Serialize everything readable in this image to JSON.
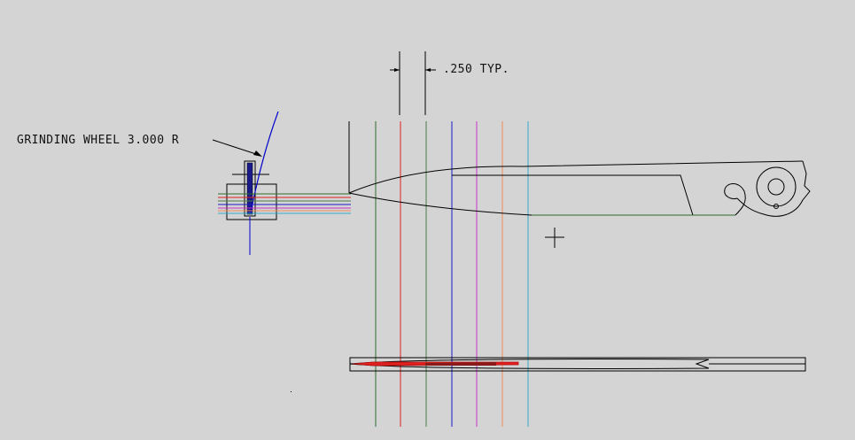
{
  "labels": {
    "grinding_wheel": "GRINDING WHEEL 3.000 R",
    "spacing": ".250 TYP."
  },
  "colors": {
    "background": "#d4d4d4",
    "outline": "#000000",
    "grinding_wheel_arc": "#0000cc",
    "section_lines": [
      "#2e6b2e",
      "#e02020",
      "#4a7a4a",
      "#1a1acc",
      "#cc33cc",
      "#f08a5a",
      "#33aacc"
    ]
  },
  "icons": {
    "cursor": "crosshair-icon"
  }
}
